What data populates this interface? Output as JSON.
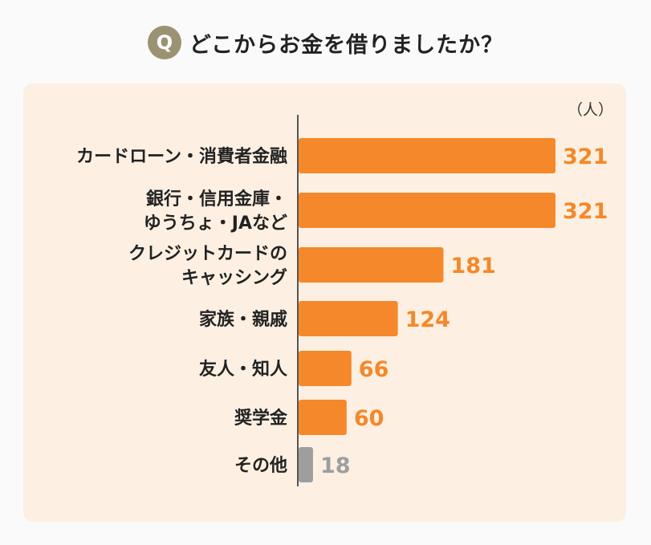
{
  "header": {
    "badge": "Q",
    "question": "どこからお金を借りましたか？"
  },
  "chart_data": {
    "type": "bar",
    "orientation": "horizontal",
    "unit": "（人）",
    "categories": [
      [
        "カードローン・消費者金融"
      ],
      [
        "銀行・信用金庫・",
        "ゆうちょ・JAなど"
      ],
      [
        "クレジットカードの",
        "キャッシング"
      ],
      [
        "家族・親戚"
      ],
      [
        "友人・知人"
      ],
      [
        "奨学金"
      ],
      [
        "その他"
      ]
    ],
    "values": [
      321,
      321,
      181,
      124,
      66,
      60,
      18
    ],
    "colors": [
      "#f4882a",
      "#f4882a",
      "#f4882a",
      "#f4882a",
      "#f4882a",
      "#f4882a",
      "#9e9e9e"
    ],
    "label_colors": [
      "#f4882a",
      "#f4882a",
      "#f4882a",
      "#f4882a",
      "#f4882a",
      "#f4882a",
      "#9e9e9e"
    ],
    "xlim": [
      0,
      321
    ],
    "grid": false,
    "legend": "none"
  }
}
